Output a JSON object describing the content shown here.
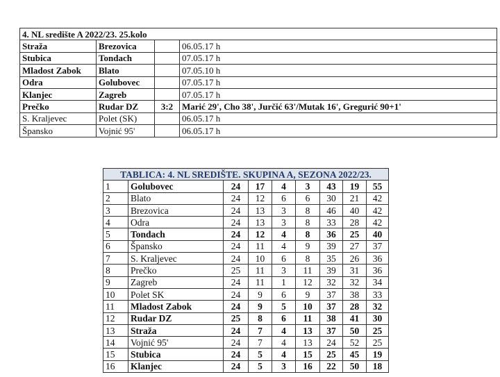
{
  "results": {
    "title": "4. NL središte A 2022/23. 25.kolo",
    "matches": [
      {
        "home": "Straža",
        "away": "Brezovica",
        "score": "",
        "info": "06.05.17 h",
        "bold": true
      },
      {
        "home": "Stubica",
        "away": "Tondach",
        "score": "",
        "info": "07.05.17 h",
        "bold": true
      },
      {
        "home": "Mladost Zabok",
        "away": "Blato",
        "score": "",
        "info": "07.05.10 h",
        "bold": true
      },
      {
        "home": "Odra",
        "away": "Golubovec",
        "score": "",
        "info": "07.05.17 h",
        "bold": true
      },
      {
        "home": "Klanjec",
        "away": "Zagreb",
        "score": "",
        "info": "07.05.17 h",
        "bold": true
      },
      {
        "home": "Prečko",
        "away": "Rudar DZ",
        "score": "3:2",
        "info": "Marić 29', Cho 38', Jurčić 63'/Mutak 16', Gregurić 90+1'",
        "bold": true,
        "info_bold": true
      },
      {
        "home": "S. Kraljevec",
        "away": "Polet (SK)",
        "score": "",
        "info": "06.05.17 h",
        "bold": false
      },
      {
        "home": "Špansko",
        "away": "Vojnić 95'",
        "score": "",
        "info": "06.05.17 h",
        "bold": false
      }
    ]
  },
  "standings": {
    "title": "TABLICA: 4. NL SREDIŠTE. SKUPINA A, SEZONA 2022/23.",
    "title_color": "#233a6b",
    "rows": [
      [
        "1",
        "Golubovec",
        "24",
        "17",
        "4",
        "3",
        "43",
        "19",
        "55",
        true
      ],
      [
        "2",
        "Blato",
        "24",
        "12",
        "6",
        "6",
        "30",
        "21",
        "42",
        false
      ],
      [
        "3",
        "Brezovica",
        "24",
        "13",
        "3",
        "8",
        "46",
        "40",
        "42",
        false
      ],
      [
        "4",
        "Odra",
        "24",
        "13",
        "3",
        "8",
        "33",
        "28",
        "42",
        false
      ],
      [
        "5",
        "Tondach",
        "24",
        "12",
        "4",
        "8",
        "36",
        "25",
        "40",
        true
      ],
      [
        "6",
        "Špansko",
        "24",
        "11",
        "4",
        "9",
        "39",
        "27",
        "37",
        false
      ],
      [
        "7",
        "S. Kraljevec",
        "24",
        "10",
        "6",
        "8",
        "35",
        "26",
        "36",
        false
      ],
      [
        "8",
        "Prečko",
        "25",
        "11",
        "3",
        "11",
        "39",
        "31",
        "36",
        false
      ],
      [
        "9",
        "Zagreb",
        "24",
        "11",
        "1",
        "12",
        "32",
        "32",
        "34",
        false
      ],
      [
        "10",
        "Polet SK",
        "24",
        "9",
        "6",
        "9",
        "37",
        "38",
        "33",
        false
      ],
      [
        "11",
        "Mladost Zabok",
        "24",
        "9",
        "5",
        "10",
        "37",
        "28",
        "32",
        true
      ],
      [
        "12",
        "Rudar DZ",
        "25",
        "8",
        "6",
        "11",
        "38",
        "41",
        "30",
        true
      ],
      [
        "13",
        "Straža",
        "24",
        "7",
        "4",
        "13",
        "37",
        "50",
        "25",
        true
      ],
      [
        "14",
        "Vojnić 95'",
        "24",
        "7",
        "4",
        "13",
        "24",
        "52",
        "25",
        false
      ],
      [
        "15",
        "Stubica",
        "24",
        "5",
        "4",
        "15",
        "25",
        "45",
        "19",
        true
      ],
      [
        "16",
        "Klanjec",
        "24",
        "5",
        "3",
        "16",
        "22",
        "50",
        "18",
        true
      ]
    ]
  }
}
